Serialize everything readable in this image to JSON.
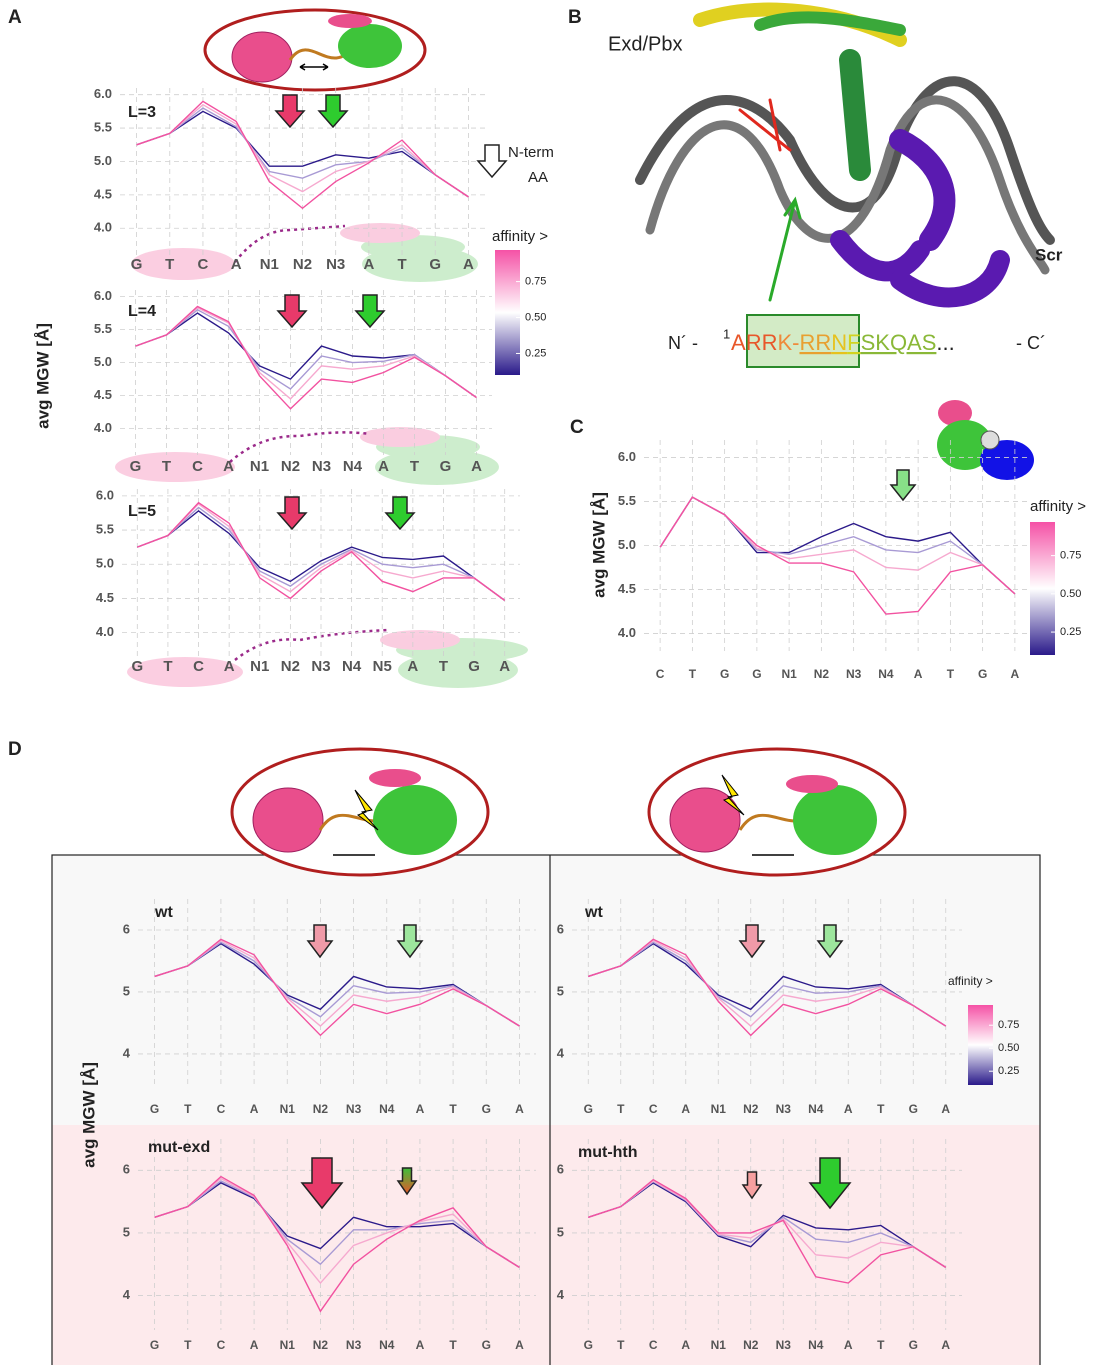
{
  "chart_data": [
    {
      "type": "line",
      "title": "L=3",
      "categories": [
        "G",
        "T",
        "C",
        "A",
        "N1",
        "N2",
        "N3",
        "A",
        "T",
        "G",
        "A"
      ],
      "series": [
        {
          "color": "#2b1a8a",
          "values": [
            5.25,
            5.42,
            5.75,
            5.5,
            4.93,
            4.93,
            5.1,
            5.05,
            5.15,
            4.8,
            4.47
          ]
        },
        {
          "color": "#a89ad4",
          "values": [
            5.25,
            5.42,
            5.8,
            5.52,
            4.85,
            4.75,
            4.95,
            5.0,
            5.2,
            4.8,
            4.47
          ]
        },
        {
          "color": "#f6a9cf",
          "values": [
            5.25,
            5.42,
            5.85,
            5.56,
            4.8,
            4.55,
            4.85,
            5.0,
            5.25,
            4.8,
            4.47
          ]
        },
        {
          "color": "#f252a0",
          "values": [
            5.25,
            5.42,
            5.9,
            5.6,
            4.7,
            4.3,
            4.7,
            4.98,
            5.32,
            4.8,
            4.47
          ]
        }
      ],
      "ylim": [
        3.6,
        6.1
      ],
      "yticks": [
        {
          "value": 4,
          "label": "4.0"
        },
        4.5,
        {
          "value": 5,
          "label": "5.0"
        },
        5.5,
        {
          "value": 6,
          "label": "6.0"
        }
      ],
      "grid": true
    },
    {
      "type": "line",
      "title": "L=4",
      "categories": [
        "G",
        "T",
        "C",
        "A",
        "N1",
        "N2",
        "N3",
        "N4",
        "A",
        "T",
        "G",
        "A"
      ],
      "series": [
        {
          "color": "#2b1a8a",
          "values": [
            5.25,
            5.42,
            5.75,
            5.45,
            4.95,
            4.75,
            5.25,
            5.1,
            5.07,
            5.12,
            4.8,
            4.47
          ]
        },
        {
          "color": "#a89ad4",
          "values": [
            5.25,
            5.42,
            5.8,
            5.55,
            4.9,
            4.6,
            5.1,
            5.0,
            5.02,
            5.12,
            4.8,
            4.47
          ]
        },
        {
          "color": "#f6a9cf",
          "values": [
            5.25,
            5.42,
            5.83,
            5.6,
            4.85,
            4.45,
            4.95,
            4.9,
            4.95,
            5.1,
            4.8,
            4.47
          ]
        },
        {
          "color": "#f252a0",
          "values": [
            5.25,
            5.42,
            5.85,
            5.62,
            4.8,
            4.3,
            4.75,
            4.7,
            4.85,
            5.08,
            4.8,
            4.47
          ]
        }
      ],
      "ylim": [
        3.6,
        6.1
      ],
      "yticks": [
        {
          "value": 4,
          "label": "4.0"
        },
        4.5,
        {
          "value": 5,
          "label": "5.0"
        },
        5.5,
        {
          "value": 6,
          "label": "6.0"
        }
      ],
      "grid": true
    },
    {
      "type": "line",
      "title": "L=5",
      "categories": [
        "G",
        "T",
        "C",
        "A",
        "N1",
        "N2",
        "N3",
        "N4",
        "N5",
        "A",
        "T",
        "G",
        "A"
      ],
      "series": [
        {
          "color": "#2b1a8a",
          "values": [
            5.25,
            5.42,
            5.78,
            5.45,
            4.95,
            4.75,
            5.05,
            5.25,
            5.1,
            5.07,
            5.12,
            4.8,
            4.47
          ]
        },
        {
          "color": "#a89ad4",
          "values": [
            5.25,
            5.42,
            5.83,
            5.5,
            4.9,
            4.68,
            5.0,
            5.22,
            5.0,
            4.95,
            5.0,
            4.8,
            4.47
          ]
        },
        {
          "color": "#f6a9cf",
          "values": [
            5.25,
            5.42,
            5.88,
            5.55,
            4.85,
            4.6,
            4.95,
            5.2,
            4.9,
            4.8,
            4.9,
            4.8,
            4.47
          ]
        },
        {
          "color": "#f252a0",
          "values": [
            5.25,
            5.42,
            5.9,
            5.6,
            4.8,
            4.5,
            4.9,
            5.18,
            4.75,
            4.6,
            4.8,
            4.8,
            4.47
          ]
        }
      ],
      "ylim": [
        3.6,
        6.1
      ],
      "yticks": [
        {
          "value": 4,
          "label": "4.0"
        },
        4.5,
        {
          "value": 5,
          "label": "5.0"
        },
        5.5,
        {
          "value": 6,
          "label": "6.0"
        }
      ],
      "grid": true
    },
    {
      "type": "line",
      "categories": [
        "C",
        "T",
        "G",
        "G",
        "N1",
        "N2",
        "N3",
        "N4",
        "A",
        "T",
        "G",
        "A"
      ],
      "series": [
        {
          "color": "#2b1a8a",
          "values": [
            4.98,
            5.55,
            5.35,
            4.92,
            4.92,
            5.1,
            5.25,
            5.1,
            5.05,
            5.15,
            4.78,
            4.45
          ]
        },
        {
          "color": "#a89ad4",
          "values": [
            4.98,
            5.55,
            5.35,
            4.95,
            4.9,
            5.0,
            5.1,
            4.95,
            4.92,
            5.05,
            4.78,
            4.45
          ]
        },
        {
          "color": "#f6a9cf",
          "values": [
            4.98,
            5.55,
            5.35,
            4.97,
            4.85,
            4.9,
            4.95,
            4.75,
            4.72,
            4.92,
            4.78,
            4.45
          ]
        },
        {
          "color": "#f252a0",
          "values": [
            4.98,
            5.55,
            5.35,
            5.0,
            4.8,
            4.8,
            4.7,
            4.22,
            4.25,
            4.7,
            4.78,
            4.45
          ]
        }
      ],
      "ylim": [
        3.8,
        6.2
      ],
      "yticks": [
        {
          "value": 4,
          "label": "4.0"
        },
        4.5,
        {
          "value": 5,
          "label": "5.0"
        },
        5.5,
        {
          "value": 6,
          "label": "6.0"
        }
      ],
      "grid": true
    },
    {
      "type": "line",
      "title": "wt",
      "title_color": "#3b6ee8",
      "categories": [
        "G",
        "T",
        "C",
        "A",
        "N1",
        "N2",
        "N3",
        "N4",
        "A",
        "T",
        "G",
        "A"
      ],
      "series": [
        {
          "color": "#2b1a8a",
          "values": [
            5.25,
            5.42,
            5.78,
            5.45,
            4.95,
            4.72,
            5.25,
            5.08,
            5.05,
            5.12,
            4.78,
            4.45
          ]
        },
        {
          "color": "#a89ad4",
          "values": [
            5.25,
            5.42,
            5.8,
            5.5,
            4.92,
            4.6,
            5.1,
            4.98,
            5.0,
            5.1,
            4.78,
            4.45
          ]
        },
        {
          "color": "#f6a9cf",
          "values": [
            5.25,
            5.42,
            5.83,
            5.55,
            4.9,
            4.45,
            4.95,
            4.85,
            4.92,
            5.08,
            4.78,
            4.45
          ]
        },
        {
          "color": "#f252a0",
          "values": [
            5.25,
            5.42,
            5.85,
            5.6,
            4.85,
            4.3,
            4.8,
            4.65,
            4.8,
            5.05,
            4.78,
            4.45
          ]
        }
      ],
      "ylim": [
        3.45,
        6.5
      ],
      "yticks": [
        4,
        5,
        6
      ],
      "grid": true
    },
    {
      "type": "line",
      "title": "mut-exd",
      "title_color": "#e8131b",
      "categories": [
        "G",
        "T",
        "C",
        "A",
        "N1",
        "N2",
        "N3",
        "N4",
        "A",
        "T",
        "G",
        "A"
      ],
      "series": [
        {
          "color": "#2b1a8a",
          "values": [
            5.25,
            5.42,
            5.8,
            5.55,
            4.95,
            4.75,
            5.25,
            5.1,
            5.1,
            5.15,
            4.78,
            4.45
          ]
        },
        {
          "color": "#a89ad4",
          "values": [
            5.25,
            5.42,
            5.83,
            5.57,
            4.9,
            4.5,
            5.05,
            5.05,
            5.15,
            5.2,
            4.78,
            4.45
          ]
        },
        {
          "color": "#f6a9cf",
          "values": [
            5.25,
            5.42,
            5.87,
            5.58,
            4.85,
            4.2,
            4.8,
            5.0,
            5.18,
            5.3,
            4.78,
            4.45
          ]
        },
        {
          "color": "#f252a0",
          "values": [
            5.25,
            5.42,
            5.9,
            5.6,
            4.8,
            3.75,
            4.5,
            4.9,
            5.2,
            5.4,
            4.78,
            4.45
          ]
        }
      ],
      "ylim": [
        3.45,
        6.5
      ],
      "yticks": [
        4,
        5,
        6
      ],
      "grid": true
    },
    {
      "type": "line",
      "title": "wt",
      "title_color": "#3b6ee8",
      "categories": [
        "G",
        "T",
        "C",
        "A",
        "N1",
        "N2",
        "N3",
        "N4",
        "A",
        "T",
        "G",
        "A"
      ],
      "series": [
        {
          "color": "#2b1a8a",
          "values": [
            5.25,
            5.42,
            5.78,
            5.45,
            4.95,
            4.72,
            5.25,
            5.08,
            5.05,
            5.12,
            4.78,
            4.45
          ]
        },
        {
          "color": "#a89ad4",
          "values": [
            5.25,
            5.42,
            5.8,
            5.5,
            4.92,
            4.6,
            5.1,
            4.98,
            5.0,
            5.1,
            4.78,
            4.45
          ]
        },
        {
          "color": "#f6a9cf",
          "values": [
            5.25,
            5.42,
            5.83,
            5.55,
            4.9,
            4.45,
            4.95,
            4.85,
            4.92,
            5.08,
            4.78,
            4.45
          ]
        },
        {
          "color": "#f252a0",
          "values": [
            5.25,
            5.42,
            5.85,
            5.6,
            4.85,
            4.3,
            4.8,
            4.65,
            4.8,
            5.05,
            4.78,
            4.45
          ]
        }
      ],
      "ylim": [
        3.45,
        6.5
      ],
      "yticks": [
        4,
        5,
        6
      ],
      "grid": true
    },
    {
      "type": "line",
      "title": "mut-hth",
      "title_color": "#e8131b",
      "categories": [
        "G",
        "T",
        "C",
        "A",
        "N1",
        "N2",
        "N3",
        "N4",
        "A",
        "T",
        "G",
        "A"
      ],
      "series": [
        {
          "color": "#2b1a8a",
          "values": [
            5.25,
            5.42,
            5.8,
            5.5,
            4.95,
            4.78,
            5.28,
            5.08,
            5.05,
            5.12,
            4.78,
            4.45
          ]
        },
        {
          "color": "#a89ad4",
          "values": [
            5.25,
            5.42,
            5.82,
            5.52,
            4.97,
            4.85,
            5.25,
            4.9,
            4.85,
            5.0,
            4.78,
            4.45
          ]
        },
        {
          "color": "#f6a9cf",
          "values": [
            5.25,
            5.42,
            5.83,
            5.53,
            4.98,
            4.92,
            5.22,
            4.65,
            4.6,
            4.85,
            4.78,
            4.45
          ]
        },
        {
          "color": "#f252a0",
          "values": [
            5.25,
            5.42,
            5.85,
            5.55,
            5.0,
            5.0,
            5.2,
            4.3,
            4.2,
            4.65,
            4.78,
            4.45
          ]
        }
      ],
      "ylim": [
        3.45,
        6.5
      ],
      "yticks": [
        4,
        5,
        6
      ],
      "grid": true
    }
  ],
  "panels": {
    "a": {
      "letter": "A",
      "ylabel": "avg MGW [Å]",
      "legend": [
        "N-term",
        "AA"
      ]
    },
    "b": {
      "letter": "B",
      "exd": "Exd/Pbx",
      "scr": "Scr",
      "n_end": "N´ -",
      "index": "1",
      "sequence": [
        {
          "text": "A",
          "color": "#e8572a"
        },
        {
          "text": "RR",
          "color": "#e8572a"
        },
        {
          "text": "K-",
          "color": "#ef8a3a"
        },
        {
          "text": "RR",
          "color": "#e8a030"
        },
        {
          "text": "N",
          "color": "#e6c21e"
        },
        {
          "text": "F",
          "color": "#d2d420"
        },
        {
          "text": "SKQAS",
          "color": "#8ab838"
        }
      ],
      "dots": "...",
      "c_end": "- C´"
    },
    "c": {
      "letter": "C",
      "ylabel": "avg MGW [Å]"
    },
    "d": {
      "letter": "D",
      "ylabel": "avg MGW [Å]"
    }
  },
  "colorbars": [
    {
      "label": "affinity >",
      "lim": [
        0.1,
        0.97
      ],
      "ticks": [
        0.25,
        {
          "value": 0.5,
          "label": "0.50"
        },
        0.75
      ]
    },
    {
      "label": "affinity >",
      "lim": [
        0.1,
        0.97
      ],
      "ticks": [
        0.25,
        {
          "value": 0.5,
          "label": "0.50"
        },
        0.75
      ]
    },
    {
      "label": "affinity >",
      "lim": [
        0.1,
        0.97
      ],
      "ticks": [
        0.25,
        {
          "value": 0.5,
          "label": "0.50"
        },
        0.75
      ]
    }
  ]
}
